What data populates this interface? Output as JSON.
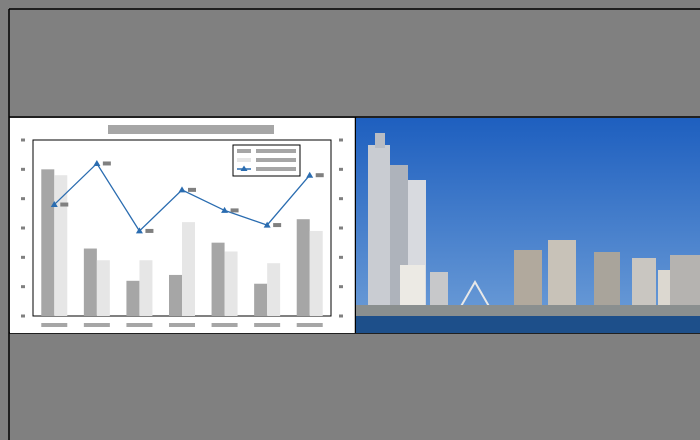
{
  "chart_data": {
    "type": "bar",
    "categories": [
      null,
      null,
      null,
      null,
      null,
      null,
      null
    ],
    "series": [
      {
        "color": "#a6a6a6",
        "values": [
          5.0,
          2.3,
          1.2,
          1.4,
          2.5,
          1.1,
          3.3
        ]
      },
      {
        "color": "#e6e6e6",
        "values": [
          4.8,
          1.9,
          1.9,
          3.2,
          2.2,
          1.8,
          2.9
        ]
      },
      {
        "type": "line",
        "color": "#2a6cb0",
        "values": [
          3.8,
          5.2,
          2.9,
          4.3,
          3.6,
          3.1,
          4.8
        ]
      }
    ],
    "ylim": [
      0,
      6
    ],
    "yticks": [
      0,
      1,
      2,
      3,
      4,
      5,
      6
    ]
  }
}
